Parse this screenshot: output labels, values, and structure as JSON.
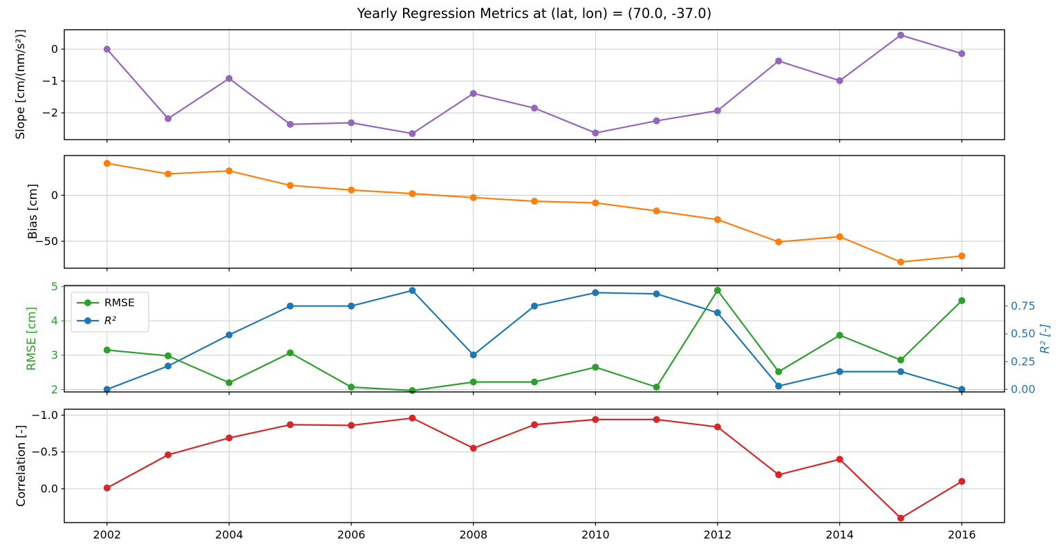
{
  "title": "Yearly Regression Metrics at (lat, lon) = (70.0, -37.0)",
  "colors": {
    "slope": "#9467bd",
    "bias": "#ff7f0e",
    "rmse": "#2ca02c",
    "r2": "#1f77b4",
    "correlation": "#d62728",
    "grid": "#cccccc",
    "spine": "#000000"
  },
  "x_axis": {
    "ticks": [
      2002,
      2004,
      2006,
      2008,
      2010,
      2012,
      2014,
      2016
    ],
    "tick_labels": [
      "2002",
      "2004",
      "2006",
      "2008",
      "2010",
      "2012",
      "2014",
      "2016"
    ],
    "lim": [
      2001.3,
      2016.7
    ]
  },
  "legend": {
    "items": [
      {
        "label": "RMSE",
        "color": "#2ca02c",
        "italic": false
      },
      {
        "label": "R²",
        "color": "#1f77b4",
        "italic": true
      }
    ]
  },
  "chart_data": [
    {
      "type": "line",
      "name": "slope",
      "ylabel": "Slope [cm/(nm/s²)]",
      "x": [
        2002,
        2003,
        2004,
        2005,
        2006,
        2007,
        2008,
        2009,
        2010,
        2011,
        2012,
        2013,
        2014,
        2015,
        2016
      ],
      "series": [
        {
          "key": "slope",
          "label": "Slope",
          "color": "#9467bd",
          "axis": "left",
          "values": [
            0.0,
            -2.18,
            -0.92,
            -2.36,
            -2.31,
            -2.65,
            -1.39,
            -1.85,
            -2.63,
            -2.25,
            -1.93,
            -0.37,
            -0.99,
            0.44,
            -0.14
          ]
        }
      ],
      "yaxis_left": {
        "ticks": [
          0,
          -1,
          -2
        ],
        "tick_labels": [
          "0",
          "−1",
          "−2"
        ],
        "lim": [
          -2.84,
          0.61
        ],
        "label_color": "#000000"
      },
      "inverted": false,
      "show_x_labels": false,
      "legend": false
    },
    {
      "type": "line",
      "name": "bias",
      "ylabel": "Bias [cm]",
      "x": [
        2002,
        2003,
        2004,
        2005,
        2006,
        2007,
        2008,
        2009,
        2010,
        2011,
        2012,
        2013,
        2014,
        2015,
        2016
      ],
      "series": [
        {
          "key": "bias",
          "label": "Bias",
          "color": "#ff7f0e",
          "axis": "left",
          "values": [
            34.7,
            23.2,
            26.5,
            10.7,
            5.7,
            1.8,
            -2.5,
            -6.5,
            -8.3,
            -17.0,
            -26.5,
            -50.7,
            -45.0,
            -72.5,
            -66.0
          ]
        }
      ],
      "yaxis_left": {
        "ticks": [
          0,
          -50
        ],
        "tick_labels": [
          "0",
          "−50"
        ],
        "lim": [
          -79.3,
          43.2
        ],
        "label_color": "#000000"
      },
      "inverted": false,
      "show_x_labels": false,
      "legend": false
    },
    {
      "type": "line",
      "name": "rmse_r2",
      "ylabel": "RMSE [cm]",
      "ylabel_right": "R² [-]",
      "x": [
        2002,
        2003,
        2004,
        2005,
        2006,
        2007,
        2008,
        2009,
        2010,
        2011,
        2012,
        2013,
        2014,
        2015,
        2016
      ],
      "series": [
        {
          "key": "rmse",
          "label": "RMSE",
          "color": "#2ca02c",
          "axis": "left",
          "values": [
            3.15,
            2.98,
            2.2,
            3.07,
            2.07,
            1.97,
            2.22,
            2.22,
            2.65,
            2.07,
            4.89,
            2.52,
            3.58,
            2.86,
            4.59
          ]
        },
        {
          "key": "r2",
          "label": "R²",
          "color": "#1f77b4",
          "axis": "right",
          "values": [
            0.0,
            0.21,
            0.49,
            0.75,
            0.75,
            0.89,
            0.31,
            0.75,
            0.87,
            0.86,
            0.69,
            0.03,
            0.16,
            0.16,
            0.0
          ]
        }
      ],
      "yaxis_left": {
        "ticks": [
          2,
          3,
          4,
          5
        ],
        "tick_labels": [
          "2",
          "3",
          "4",
          "5"
        ],
        "lim": [
          1.93,
          5.03
        ],
        "label_color": "#2ca02c"
      },
      "yaxis_right": {
        "ticks": [
          0.0,
          0.25,
          0.5,
          0.75
        ],
        "tick_labels": [
          "0.00",
          "0.25",
          "0.50",
          "0.75"
        ],
        "lim": [
          -0.023,
          0.935
        ],
        "label_color": "#1f77b4"
      },
      "inverted": false,
      "show_x_labels": false,
      "legend": true
    },
    {
      "type": "line",
      "name": "correlation",
      "ylabel": "Correlation [-]",
      "x": [
        2002,
        2003,
        2004,
        2005,
        2006,
        2007,
        2008,
        2009,
        2010,
        2011,
        2012,
        2013,
        2014,
        2015,
        2016
      ],
      "series": [
        {
          "key": "correlation",
          "label": "Correlation",
          "color": "#d62728",
          "axis": "left",
          "values": [
            -0.01,
            -0.46,
            -0.69,
            -0.87,
            -0.86,
            -0.96,
            -0.55,
            -0.87,
            -0.94,
            -0.94,
            -0.84,
            -0.19,
            -0.4,
            0.4,
            -0.1
          ]
        }
      ],
      "yaxis_left": {
        "ticks": [
          -1.0,
          -0.5,
          0.0
        ],
        "tick_labels": [
          "−1.0",
          "−0.5",
          "0.0"
        ],
        "lim": [
          -1.08,
          0.46
        ],
        "label_color": "#000000"
      },
      "inverted": true,
      "show_x_labels": true,
      "legend": false
    }
  ]
}
